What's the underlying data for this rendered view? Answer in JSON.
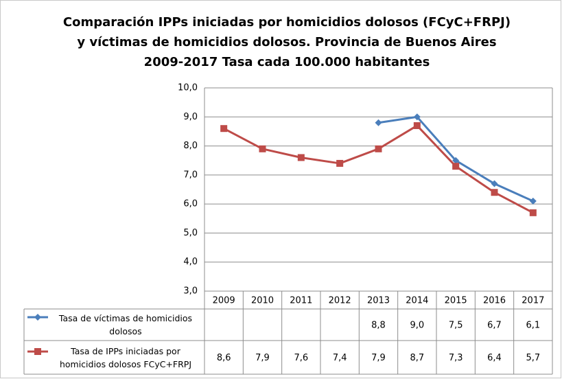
{
  "chart_data": {
    "type": "line",
    "title": [
      "Comparación IPPs iniciadas por homicidios dolosos (FCyC+FRPJ)",
      "y víctimas de homicidios dolosos. Provincia de Buenos Aires",
      "2009-2017 Tasa cada 100.000 habitantes"
    ],
    "categories": [
      "2009",
      "2010",
      "2011",
      "2012",
      "2013",
      "2014",
      "2015",
      "2016",
      "2017"
    ],
    "series": [
      {
        "name": "Tasa de víctimas de homicidios dolosos",
        "color": "#4a7ebb",
        "marker": "diamond",
        "values": [
          null,
          null,
          null,
          null,
          8.8,
          9.0,
          7.5,
          6.7,
          6.1
        ],
        "value_labels": [
          null,
          null,
          null,
          null,
          "8,8",
          "9,0",
          "7,5",
          "6,7",
          "6,1"
        ]
      },
      {
        "name": "Tasa de IPPs iniciadas por homicidios dolosos FCyC+FRPJ",
        "color": "#be4b48",
        "marker": "square",
        "values": [
          8.6,
          7.9,
          7.6,
          7.4,
          7.9,
          8.7,
          7.3,
          6.4,
          5.7
        ],
        "value_labels": [
          "8,6",
          "7,9",
          "7,6",
          "7,4",
          "7,9",
          "8,7",
          "7,3",
          "6,4",
          "5,7"
        ]
      }
    ],
    "ylim": [
      3,
      10
    ],
    "yticks": [
      {
        "value": 3,
        "label": "3,0"
      },
      {
        "value": 4,
        "label": "4,0"
      },
      {
        "value": 5,
        "label": "5,0"
      },
      {
        "value": 6,
        "label": "6,0"
      },
      {
        "value": 7,
        "label": "7,0"
      },
      {
        "value": 8,
        "label": "8,0"
      },
      {
        "value": 9,
        "label": "9,0"
      },
      {
        "value": 10,
        "label": "10,0"
      }
    ],
    "grid": true
  }
}
